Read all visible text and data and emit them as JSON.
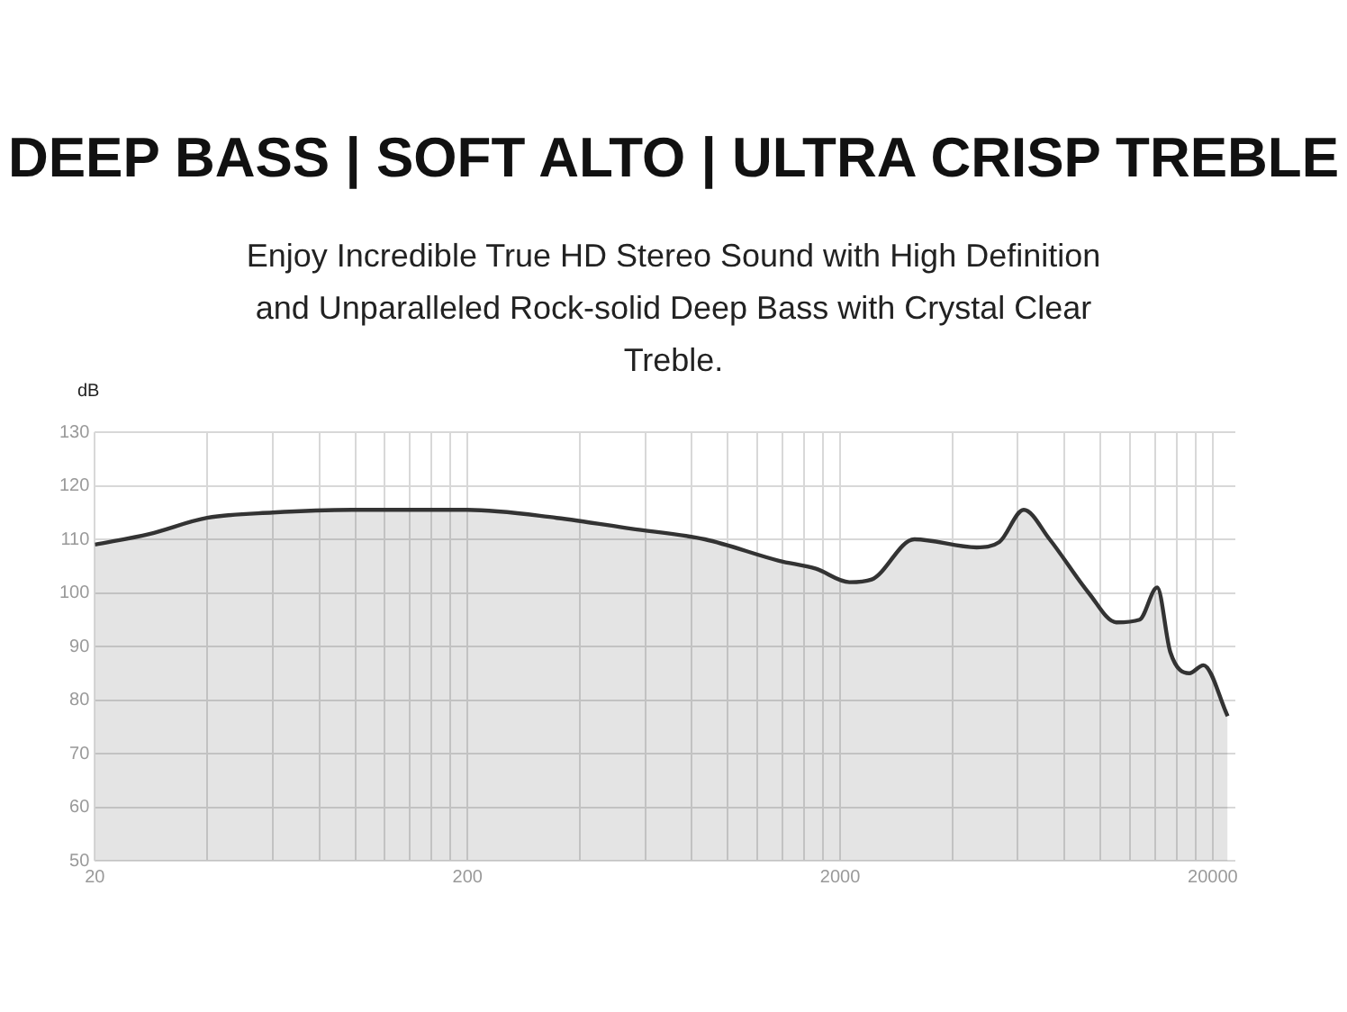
{
  "chart_data": {
    "type": "area",
    "title": "DEEP BASS | SOFT ALTO | ULTRA CRISP TREBLE",
    "subtitle": "Enjoy Incredible True HD Stereo Sound with High Definition and Unparalleled Rock-solid Deep Bass with Crystal Clear Treble.",
    "ylabel": "dB",
    "x": [
      20,
      28,
      40,
      60,
      98,
      155,
      200,
      347,
      548,
      867,
      1371,
      1723,
      2118,
      2430,
      3160,
      4650,
      5350,
      6220,
      7300,
      9290,
      11020,
      12730,
      14190,
      15380,
      17310,
      18880,
      21930
    ],
    "series": [
      {
        "color": "#333333",
        "values": [
          109,
          111,
          114,
          115,
          115.5,
          115.5,
          115.5,
          114,
          112,
          110,
          106,
          104.5,
          102,
          102.5,
          110,
          108.5,
          109.5,
          115.5,
          110,
          100,
          94.5,
          95,
          101,
          89,
          85,
          86.5,
          77
        ]
      }
    ],
    "xlim": [
      20,
      23000
    ],
    "xticks": [
      20,
      {
        "value": 40,
        "label": null
      },
      {
        "value": 60,
        "label": null
      },
      {
        "value": 80,
        "label": null
      },
      {
        "value": 100,
        "label": null
      },
      {
        "value": 120,
        "label": null
      },
      {
        "value": 140,
        "label": null
      },
      {
        "value": 160,
        "label": null
      },
      {
        "value": 180,
        "label": null
      },
      200,
      {
        "value": 400,
        "label": null
      },
      {
        "value": 600,
        "label": null
      },
      {
        "value": 800,
        "label": null
      },
      {
        "value": 1000,
        "label": null
      },
      {
        "value": 1200,
        "label": null
      },
      {
        "value": 1400,
        "label": null
      },
      {
        "value": 1600,
        "label": null
      },
      {
        "value": 1800,
        "label": null
      },
      2000,
      {
        "value": 4000,
        "label": null
      },
      {
        "value": 6000,
        "label": null
      },
      {
        "value": 8000,
        "label": null
      },
      {
        "value": 10000,
        "label": null
      },
      {
        "value": 12000,
        "label": null
      },
      {
        "value": 14000,
        "label": null
      },
      {
        "value": 16000,
        "label": null
      },
      {
        "value": 18000,
        "label": null
      },
      20000
    ],
    "ylim": [
      50,
      130
    ],
    "yticks": [
      50,
      60,
      70,
      80,
      90,
      100,
      110,
      120,
      130
    ],
    "log": "x",
    "grid": true
  }
}
